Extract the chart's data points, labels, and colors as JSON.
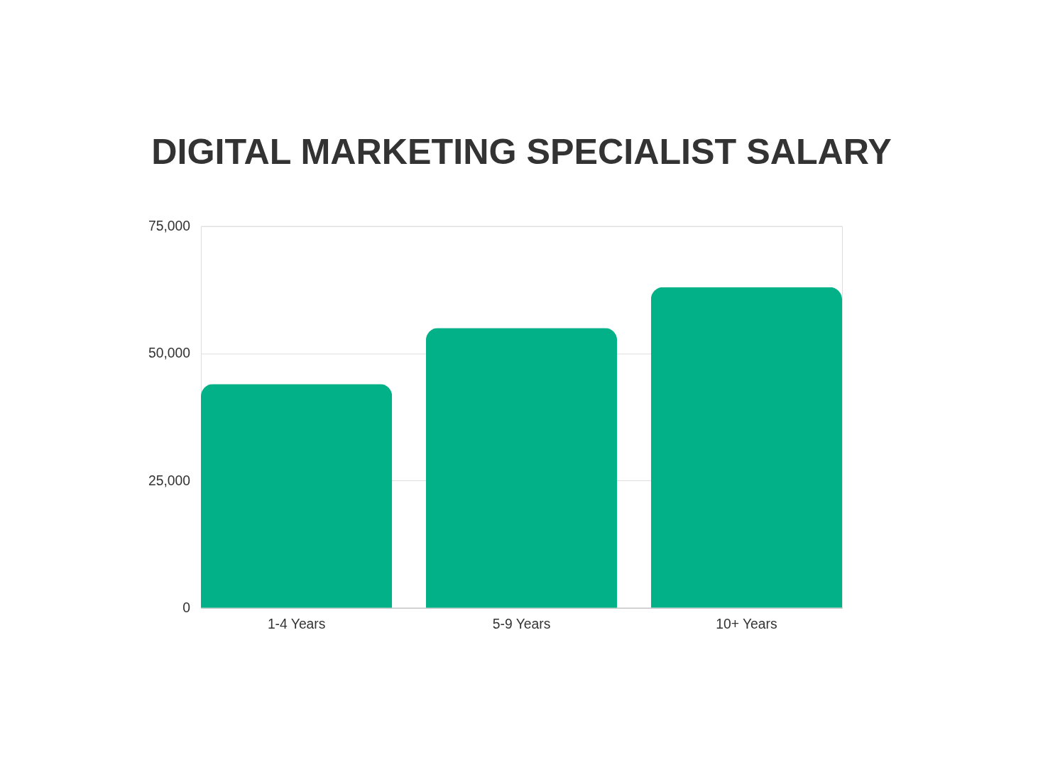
{
  "chart_data": {
    "type": "bar",
    "title": "DIGITAL MARKETING SPECIALIST SALARY",
    "categories": [
      "1-4 Years",
      "5-9 Years",
      "10+ Years"
    ],
    "values": [
      44000,
      55000,
      63000
    ],
    "color": "#02b188",
    "ylim": [
      0,
      75000
    ],
    "yticks": [
      {
        "value": 0,
        "label": "0"
      },
      {
        "value": 25000,
        "label": "25,000"
      },
      {
        "value": 50000,
        "label": "50,000"
      },
      {
        "value": 75000,
        "label": "75,000"
      }
    ],
    "grid": "y"
  }
}
